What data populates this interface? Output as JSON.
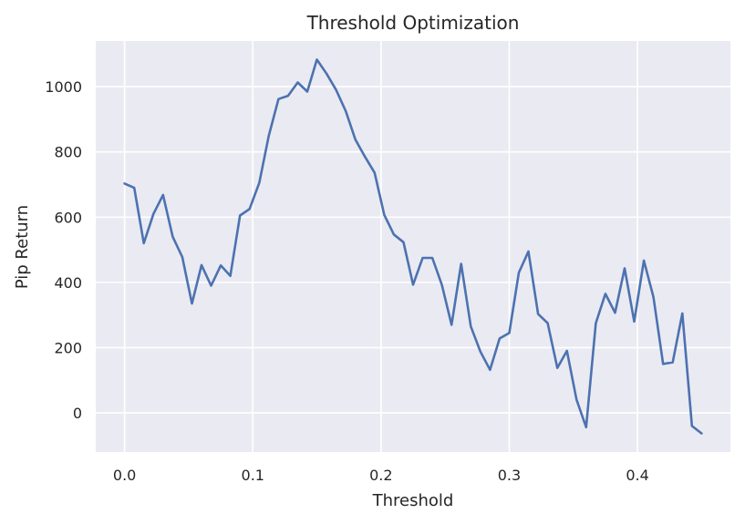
{
  "chart_data": {
    "type": "line",
    "title": "Threshold Optimization",
    "xlabel": "Threshold",
    "ylabel": "Pip Return",
    "xlim": [
      -0.0225,
      0.4725
    ],
    "ylim": [
      -120,
      1140
    ],
    "xticks": [
      0.0,
      0.1,
      0.2,
      0.3,
      0.4
    ],
    "xtick_labels": [
      "0.0",
      "0.1",
      "0.2",
      "0.3",
      "0.4"
    ],
    "yticks": [
      0,
      200,
      400,
      600,
      800,
      1000
    ],
    "ytick_labels": [
      "0",
      "200",
      "400",
      "600",
      "800",
      "1000"
    ],
    "grid": true,
    "colors": {
      "background": "#eaeaf2",
      "grid": "#ffffff",
      "line": "#4c72b0"
    },
    "series": [
      {
        "x": [
          0.0,
          0.0075,
          0.015,
          0.0225,
          0.03,
          0.0375,
          0.045,
          0.0525,
          0.06,
          0.0675,
          0.075,
          0.0825,
          0.09,
          0.0975,
          0.105,
          0.1125,
          0.12,
          0.1275,
          0.135,
          0.1425,
          0.15,
          0.1575,
          0.165,
          0.1725,
          0.18,
          0.1875,
          0.195,
          0.2025,
          0.21,
          0.2175,
          0.225,
          0.2325,
          0.24,
          0.2475,
          0.255,
          0.2625,
          0.27,
          0.2775,
          0.285,
          0.2925,
          0.3,
          0.3075,
          0.315,
          0.3225,
          0.33,
          0.3375,
          0.345,
          0.3525,
          0.36,
          0.3675,
          0.375,
          0.3825,
          0.39,
          0.3975,
          0.405,
          0.4125,
          0.42,
          0.4275,
          0.435,
          0.4425,
          0.45
        ],
        "values": [
          703,
          690,
          520,
          610,
          668,
          540,
          478,
          335,
          453,
          390,
          452,
          420,
          605,
          625,
          705,
          850,
          962,
          972,
          1013,
          985,
          1083,
          1040,
          990,
          925,
          838,
          785,
          736,
          607,
          547,
          523,
          393,
          475,
          475,
          392,
          270,
          457,
          265,
          188,
          132,
          228,
          245,
          430,
          495,
          303,
          275,
          138,
          190,
          40,
          -44,
          275,
          365,
          307,
          443,
          280,
          467,
          355,
          150,
          155,
          305,
          -40,
          -63
        ]
      }
    ]
  }
}
